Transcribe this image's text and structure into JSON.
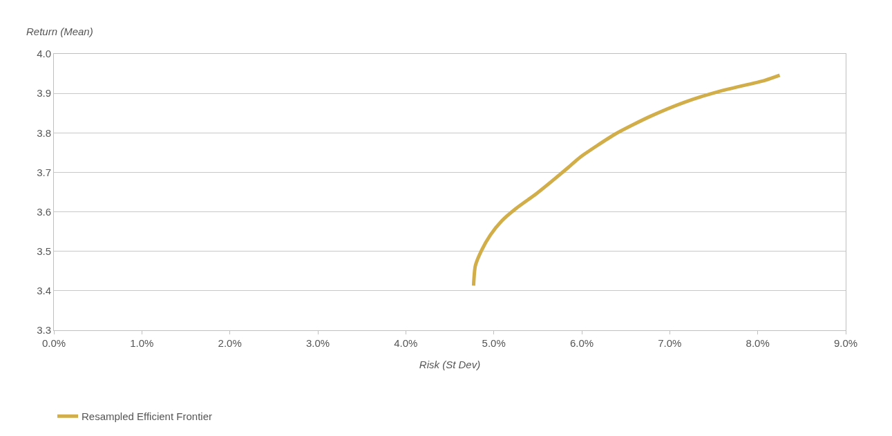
{
  "chart_data": {
    "type": "line",
    "xlabel": "Risk (St Dev)",
    "ylabel": "Return (Mean)",
    "series": [
      {
        "name": "Resampled Efficient Frontier",
        "color": "#d1ae4a",
        "x": [
          4.77,
          4.79,
          4.86,
          4.96,
          5.09,
          5.25,
          5.49,
          5.85,
          5.98,
          6.38,
          6.77,
          7.16,
          7.56,
          8.08,
          8.25
        ],
        "values": [
          3.413,
          3.463,
          3.502,
          3.541,
          3.577,
          3.608,
          3.647,
          3.713,
          3.738,
          3.797,
          3.841,
          3.877,
          3.905,
          3.933,
          3.946
        ]
      }
    ],
    "xlim": [
      0,
      9
    ],
    "xticks": [
      {
        "value": 0,
        "label": "0.0%"
      },
      {
        "value": 1,
        "label": "1.0%"
      },
      {
        "value": 2,
        "label": "2.0%"
      },
      {
        "value": 3,
        "label": "3.0%"
      },
      {
        "value": 4,
        "label": "4.0%"
      },
      {
        "value": 5,
        "label": "5.0%"
      },
      {
        "value": 6,
        "label": "6.0%"
      },
      {
        "value": 7,
        "label": "7.0%"
      },
      {
        "value": 8,
        "label": "8.0%"
      },
      {
        "value": 9,
        "label": "9.0%"
      }
    ],
    "ylim": [
      3.3,
      4.0
    ],
    "yticks": [
      {
        "value": 3.3,
        "label": "3.3"
      },
      {
        "value": 3.4,
        "label": "3.4"
      },
      {
        "value": 3.5,
        "label": "3.5"
      },
      {
        "value": 3.6,
        "label": "3.6"
      },
      {
        "value": 3.7,
        "label": "3.7"
      },
      {
        "value": 3.8,
        "label": "3.8"
      },
      {
        "value": 3.9,
        "label": "3.9"
      },
      {
        "value": 4.0,
        "label": "4.0"
      }
    ],
    "grid": "y",
    "legend": "bottom left",
    "marker": "none",
    "line_style": "solid"
  }
}
